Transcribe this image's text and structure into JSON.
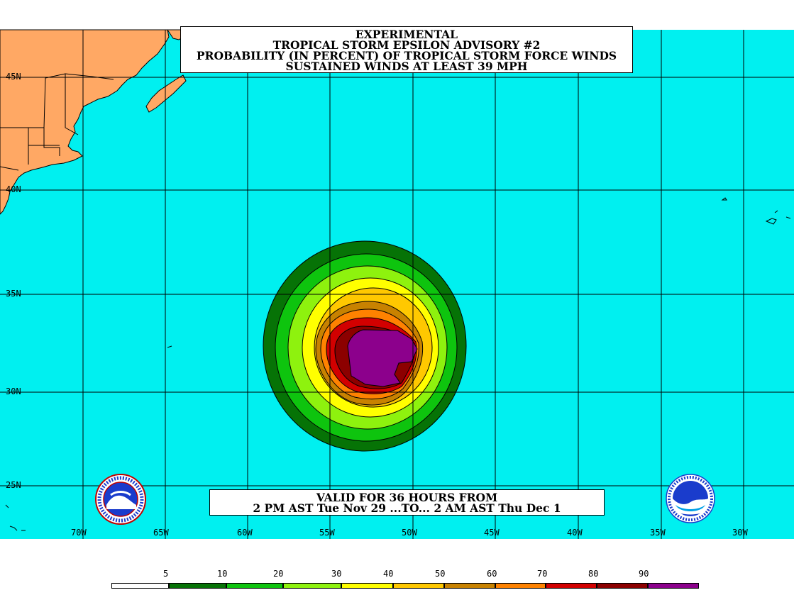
{
  "title": {
    "line1": "EXPERIMENTAL",
    "line2": "TROPICAL STORM EPSILON ADVISORY #2",
    "line3": "PROBABILITY (IN PERCENT) OF TROPICAL STORM FORCE WINDS",
    "line4": "SUSTAINED WINDS AT LEAST 39 MPH"
  },
  "valid": {
    "line1": "VALID FOR 36 HOURS FROM",
    "line2": "2 PM AST Tue Nov 29 ...TO... 2 AM AST Thu Dec 1"
  },
  "lat_labels": [
    "45N",
    "40N",
    "35N",
    "30N",
    "25N"
  ],
  "lon_labels": [
    "70W",
    "65W",
    "60W",
    "55W",
    "50W",
    "45W",
    "40W",
    "35W",
    "30W"
  ],
  "legend": {
    "labels": [
      "5",
      "10",
      "20",
      "30",
      "40",
      "50",
      "60",
      "70",
      "80",
      "90"
    ],
    "colors": [
      "#ffffff",
      "#067306",
      "#0ec40e",
      "#8ef20e",
      "#ffff00",
      "#ffc800",
      "#c88200",
      "#ff8200",
      "#d20000",
      "#8c0000",
      "#8c008c"
    ]
  },
  "colors": {
    "ocean": "#00f0f0",
    "land": "#ffa864",
    "grid": "#000000"
  },
  "icons": {
    "left_logo": "nws-logo-icon",
    "right_logo": "noaa-logo-icon"
  }
}
